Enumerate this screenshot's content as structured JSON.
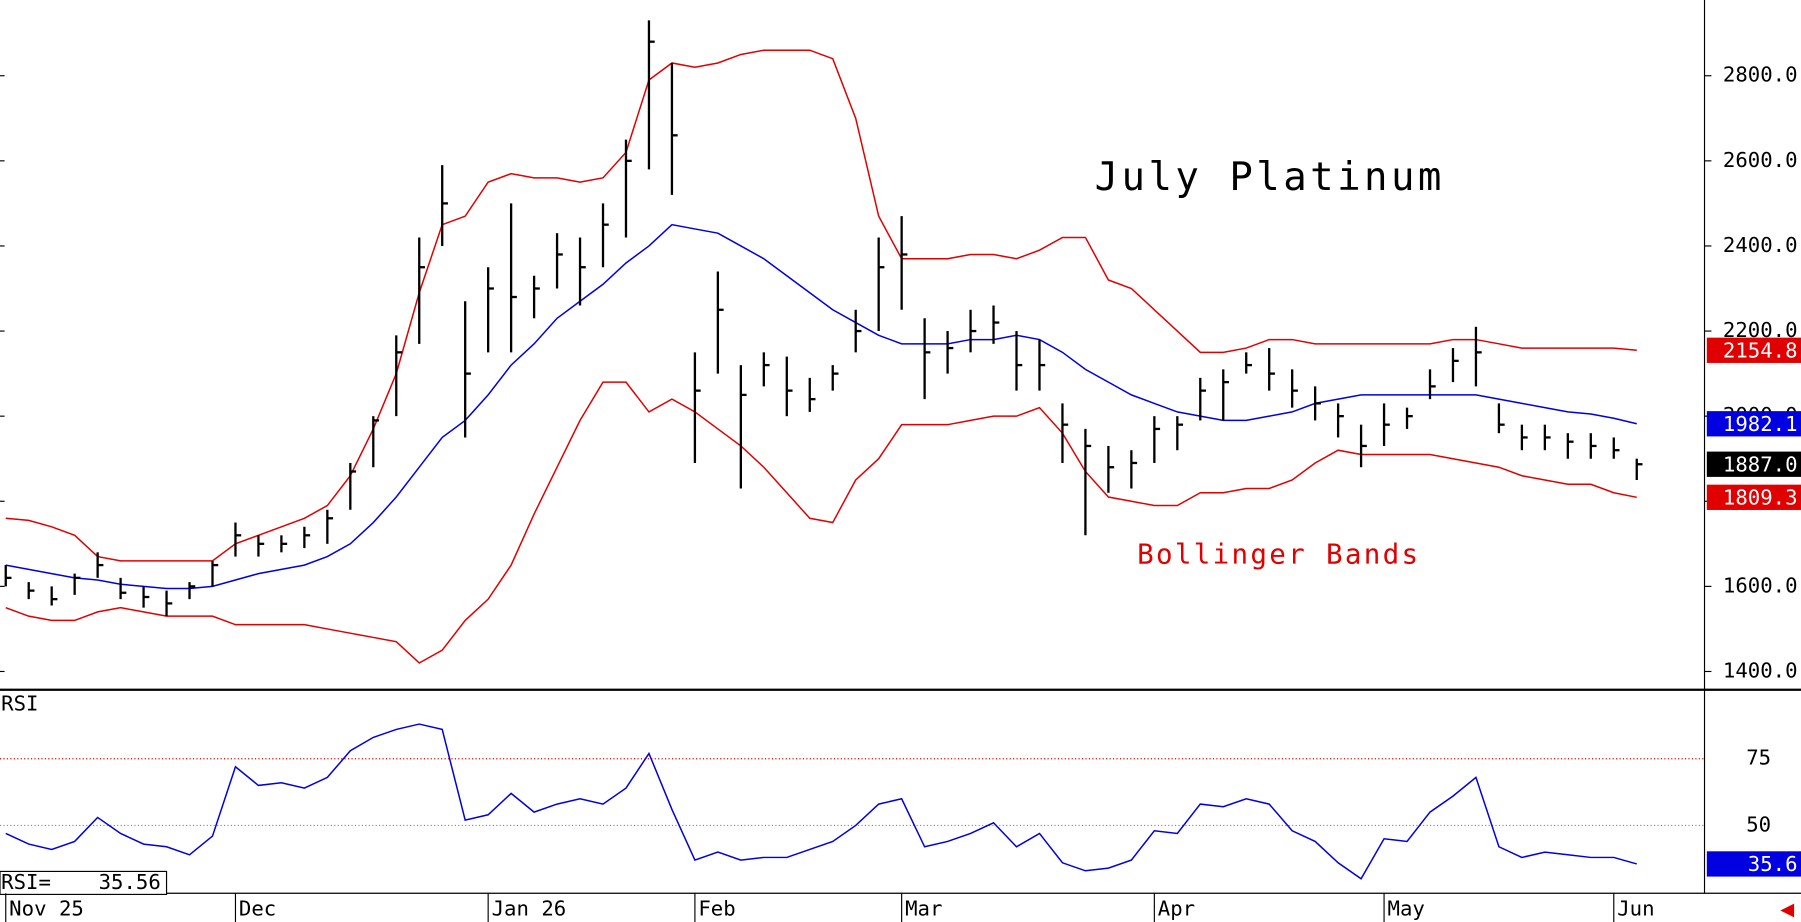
{
  "chart_data": [
    {
      "type": "hlc",
      "title": "July Platinum",
      "annotation": "Bollinger Bands",
      "categories": [
        "Nov 25",
        null,
        null,
        null,
        null,
        null,
        null,
        null,
        null,
        null,
        "Dec",
        null,
        null,
        null,
        null,
        null,
        null,
        null,
        null,
        null,
        null,
        "Jan 26",
        null,
        null,
        null,
        null,
        null,
        null,
        null,
        null,
        "Feb",
        null,
        null,
        null,
        null,
        null,
        null,
        null,
        null,
        "Mar",
        null,
        null,
        null,
        null,
        null,
        null,
        null,
        null,
        null,
        null,
        "Apr",
        null,
        null,
        null,
        null,
        null,
        null,
        null,
        null,
        null,
        "May",
        null,
        null,
        null,
        null,
        null,
        null,
        null,
        null,
        null,
        "Jun",
        null
      ],
      "high": [
        1650,
        1610,
        1600,
        1630,
        1680,
        1620,
        1600,
        1590,
        1610,
        1660,
        1750,
        1720,
        1720,
        1740,
        1780,
        1890,
        2000,
        2190,
        2420,
        2590,
        2270,
        2350,
        2500,
        2330,
        2430,
        2420,
        2500,
        2650,
        2930,
        2830,
        2150,
        2340,
        2120,
        2150,
        2140,
        2090,
        2120,
        2250,
        2420,
        2470,
        2230,
        2200,
        2250,
        2260,
        2200,
        2180,
        2030,
        1970,
        1930,
        1920,
        2000,
        2000,
        2090,
        2110,
        2150,
        2160,
        2110,
        2070,
        2030,
        1980,
        2030,
        2020,
        2110,
        2160,
        2210,
        2030,
        1980,
        1980,
        1960,
        1960,
        1950,
        1900
      ],
      "low": [
        1600,
        1570,
        1555,
        1580,
        1620,
        1570,
        1550,
        1530,
        1570,
        1600,
        1670,
        1670,
        1680,
        1690,
        1700,
        1780,
        1880,
        2000,
        2170,
        2400,
        1950,
        2150,
        2150,
        2230,
        2300,
        2260,
        2350,
        2420,
        2580,
        2520,
        1890,
        2100,
        1830,
        2070,
        2000,
        2010,
        2060,
        2150,
        2200,
        2250,
        2040,
        2100,
        2150,
        2170,
        2060,
        2060,
        1890,
        1720,
        1820,
        1830,
        1890,
        1920,
        1990,
        1990,
        2100,
        2060,
        2020,
        1990,
        1950,
        1880,
        1930,
        1970,
        2040,
        2080,
        2070,
        1960,
        1920,
        1920,
        1900,
        1900,
        1900,
        1850
      ],
      "close": [
        1620,
        1590,
        1570,
        1620,
        1650,
        1585,
        1575,
        1560,
        1600,
        1650,
        1720,
        1700,
        1700,
        1720,
        1760,
        1870,
        1990,
        2150,
        2350,
        2500,
        2100,
        2300,
        2280,
        2300,
        2380,
        2350,
        2450,
        2600,
        2880,
        2660,
        2060,
        2250,
        2050,
        2120,
        2060,
        2040,
        2100,
        2200,
        2350,
        2380,
        2150,
        2160,
        2200,
        2220,
        2120,
        2120,
        1980,
        1930,
        1880,
        1890,
        1970,
        1980,
        2060,
        2080,
        2120,
        2100,
        2060,
        2030,
        2000,
        1930,
        1980,
        2000,
        2070,
        2130,
        2150,
        1980,
        1950,
        1950,
        1940,
        1930,
        1920,
        1887
      ],
      "close_last_label": "1887.0",
      "color": "#000000",
      "bands": [
        {
          "color": "#e00000",
          "last_label": "2154.8",
          "values": [
            1760,
            1755,
            1740,
            1720,
            1670,
            1660,
            1660,
            1660,
            1660,
            1660,
            1700,
            1720,
            1740,
            1760,
            1790,
            1860,
            1970,
            2100,
            2290,
            2450,
            2470,
            2550,
            2570,
            2560,
            2560,
            2550,
            2560,
            2620,
            2790,
            2830,
            2820,
            2830,
            2850,
            2860,
            2860,
            2860,
            2840,
            2700,
            2470,
            2370,
            2370,
            2370,
            2380,
            2380,
            2370,
            2390,
            2420,
            2420,
            2320,
            2300,
            2250,
            2200,
            2150,
            2150,
            2160,
            2180,
            2180,
            2170,
            2170,
            2170,
            2170,
            2170,
            2170,
            2180,
            2180,
            2170,
            2160,
            2160,
            2160,
            2160,
            2160,
            2154.8
          ]
        },
        {
          "color": "#0000e0",
          "last_label": "1982.1",
          "values": [
            1650,
            1640,
            1630,
            1620,
            1615,
            1605,
            1600,
            1595,
            1595,
            1600,
            1615,
            1630,
            1640,
            1650,
            1670,
            1700,
            1750,
            1810,
            1880,
            1950,
            1990,
            2050,
            2120,
            2170,
            2230,
            2270,
            2310,
            2360,
            2400,
            2450,
            2440,
            2430,
            2400,
            2370,
            2330,
            2290,
            2250,
            2220,
            2190,
            2170,
            2170,
            2170,
            2180,
            2180,
            2190,
            2180,
            2150,
            2110,
            2080,
            2050,
            2030,
            2010,
            2000,
            1990,
            1990,
            2000,
            2010,
            2030,
            2040,
            2050,
            2050,
            2050,
            2050,
            2050,
            2050,
            2040,
            2030,
            2020,
            2010,
            2005,
            1995,
            1982.1
          ]
        },
        {
          "color": "#e00000",
          "last_label": "1809.3",
          "values": [
            1550,
            1530,
            1520,
            1520,
            1540,
            1550,
            1540,
            1530,
            1530,
            1530,
            1510,
            1510,
            1510,
            1510,
            1500,
            1490,
            1480,
            1470,
            1420,
            1450,
            1520,
            1570,
            1650,
            1770,
            1880,
            1990,
            2080,
            2080,
            2010,
            2040,
            2010,
            1970,
            1930,
            1880,
            1820,
            1760,
            1750,
            1850,
            1900,
            1980,
            1980,
            1980,
            1990,
            2000,
            2000,
            2020,
            1960,
            1870,
            1810,
            1800,
            1790,
            1790,
            1820,
            1820,
            1830,
            1830,
            1850,
            1890,
            1920,
            1910,
            1910,
            1910,
            1910,
            1900,
            1890,
            1880,
            1860,
            1850,
            1840,
            1840,
            1820,
            1809.3
          ]
        }
      ],
      "ylim": [
        1357,
        2978
      ],
      "yticks": [
        {
          "value": 1400,
          "label": "1400.0"
        },
        {
          "value": 1600,
          "label": "1600.0"
        },
        {
          "value": 1800,
          "label": "1800.0"
        },
        {
          "value": 2000,
          "label": "2000.0"
        },
        {
          "value": 2200,
          "label": "2200.0"
        },
        {
          "value": 2400,
          "label": "2400.0"
        },
        {
          "value": 2600,
          "label": "2600.0"
        },
        {
          "value": 2800,
          "label": "2800.0"
        }
      ]
    },
    {
      "type": "line",
      "title": "RSI",
      "readout_label": "RSI=",
      "color": "#0000e0",
      "last_label": "35.6",
      "values": [
        47,
        43,
        41,
        44,
        53,
        47,
        43,
        42,
        39,
        46,
        72,
        65,
        66,
        64,
        68,
        78,
        83,
        86,
        88,
        86,
        52,
        54,
        62,
        55,
        58,
        60,
        58,
        64,
        77,
        56,
        37,
        40,
        37,
        38,
        38,
        41,
        44,
        50,
        58,
        60,
        42,
        44,
        47,
        51,
        42,
        47,
        36,
        33,
        34,
        37,
        48,
        47,
        58,
        57,
        60,
        58,
        48,
        44,
        36,
        30,
        45,
        44,
        55,
        61,
        68,
        42,
        38,
        40,
        39,
        38,
        38,
        35.56
      ],
      "ylim": [
        25,
        100
      ],
      "yticks": [
        50,
        75
      ],
      "grid_colors": [
        "#888888",
        "#e00000"
      ]
    }
  ]
}
